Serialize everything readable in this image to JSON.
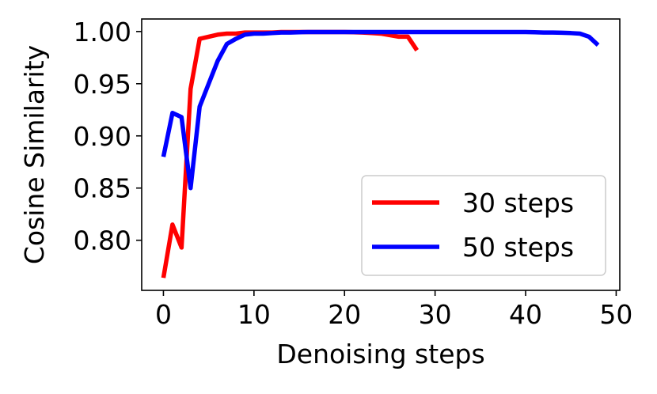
{
  "chart_data": {
    "type": "line",
    "xlabel": "Denoising steps",
    "ylabel": "Cosine Similarity",
    "xlim": [
      -2.4,
      50.4
    ],
    "ylim": [
      0.752,
      1.012
    ],
    "xticks": [
      0,
      10,
      20,
      30,
      40,
      50
    ],
    "xtick_labels": [
      "0",
      "10",
      "20",
      "30",
      "40",
      "50"
    ],
    "yticks": [
      0.8,
      0.85,
      0.9,
      0.95,
      1.0
    ],
    "ytick_labels": [
      "0.80",
      "0.85",
      "0.90",
      "0.95",
      "1.00"
    ],
    "grid": false,
    "legend_position": "lower-right",
    "series": [
      {
        "name": "30 steps",
        "color": "#ff0000",
        "x": [
          0,
          1,
          2,
          3,
          4,
          5,
          6,
          7,
          8,
          9,
          10,
          11,
          12,
          13,
          14,
          15,
          16,
          17,
          18,
          19,
          20,
          21,
          22,
          23,
          24,
          25,
          26,
          27,
          28
        ],
        "y": [
          0.764,
          0.815,
          0.793,
          0.945,
          0.993,
          0.995,
          0.997,
          0.998,
          0.998,
          0.999,
          0.999,
          0.999,
          0.999,
          0.9995,
          0.9995,
          0.9995,
          0.9995,
          0.9995,
          0.9995,
          0.9995,
          0.9995,
          0.9993,
          0.999,
          0.9985,
          0.998,
          0.9965,
          0.995,
          0.995,
          0.982
        ]
      },
      {
        "name": "50 steps",
        "color": "#0000ff",
        "x": [
          0,
          1,
          2,
          3,
          4,
          5,
          6,
          7,
          8,
          9,
          10,
          11,
          12,
          13,
          14,
          15,
          16,
          17,
          18,
          19,
          20,
          21,
          22,
          23,
          24,
          25,
          26,
          27,
          28,
          29,
          30,
          31,
          32,
          33,
          34,
          35,
          36,
          37,
          38,
          39,
          40,
          41,
          42,
          43,
          44,
          45,
          46,
          47,
          48
        ],
        "y": [
          0.88,
          0.922,
          0.918,
          0.85,
          0.928,
          0.95,
          0.972,
          0.988,
          0.993,
          0.997,
          0.998,
          0.998,
          0.9985,
          0.999,
          0.999,
          0.9993,
          0.9995,
          0.9995,
          0.9995,
          0.9995,
          0.9995,
          0.9995,
          0.9995,
          0.9995,
          0.9995,
          0.9995,
          0.9995,
          0.9995,
          0.9995,
          0.9995,
          0.9995,
          0.9995,
          0.9995,
          0.9995,
          0.9995,
          0.9995,
          0.9995,
          0.9995,
          0.9995,
          0.9995,
          0.9995,
          0.9993,
          0.999,
          0.999,
          0.9988,
          0.9985,
          0.998,
          0.995,
          0.987
        ]
      }
    ]
  }
}
